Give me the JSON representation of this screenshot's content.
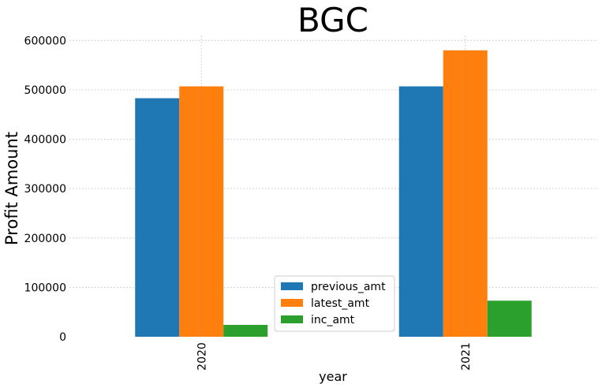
{
  "chart_data": {
    "type": "bar",
    "title": "BGC",
    "xlabel": "year",
    "ylabel": "Profit Amount",
    "categories": [
      "2020",
      "2021"
    ],
    "series": [
      {
        "name": "previous_amt",
        "color": "#1f77b4",
        "values": [
          483000,
          507000
        ]
      },
      {
        "name": "latest_amt",
        "color": "#ff7f0e",
        "values": [
          507000,
          580000
        ]
      },
      {
        "name": "inc_amt",
        "color": "#2ca02c",
        "values": [
          24000,
          73000
        ]
      }
    ],
    "ylim": [
      0,
      610000
    ],
    "yticks": [
      0,
      100000,
      200000,
      300000,
      400000,
      500000,
      600000
    ],
    "ytick_labels": [
      "0",
      "100000",
      "200000",
      "300000",
      "400000",
      "500000",
      "600000"
    ],
    "grid": true,
    "legend_position": "lower center"
  }
}
